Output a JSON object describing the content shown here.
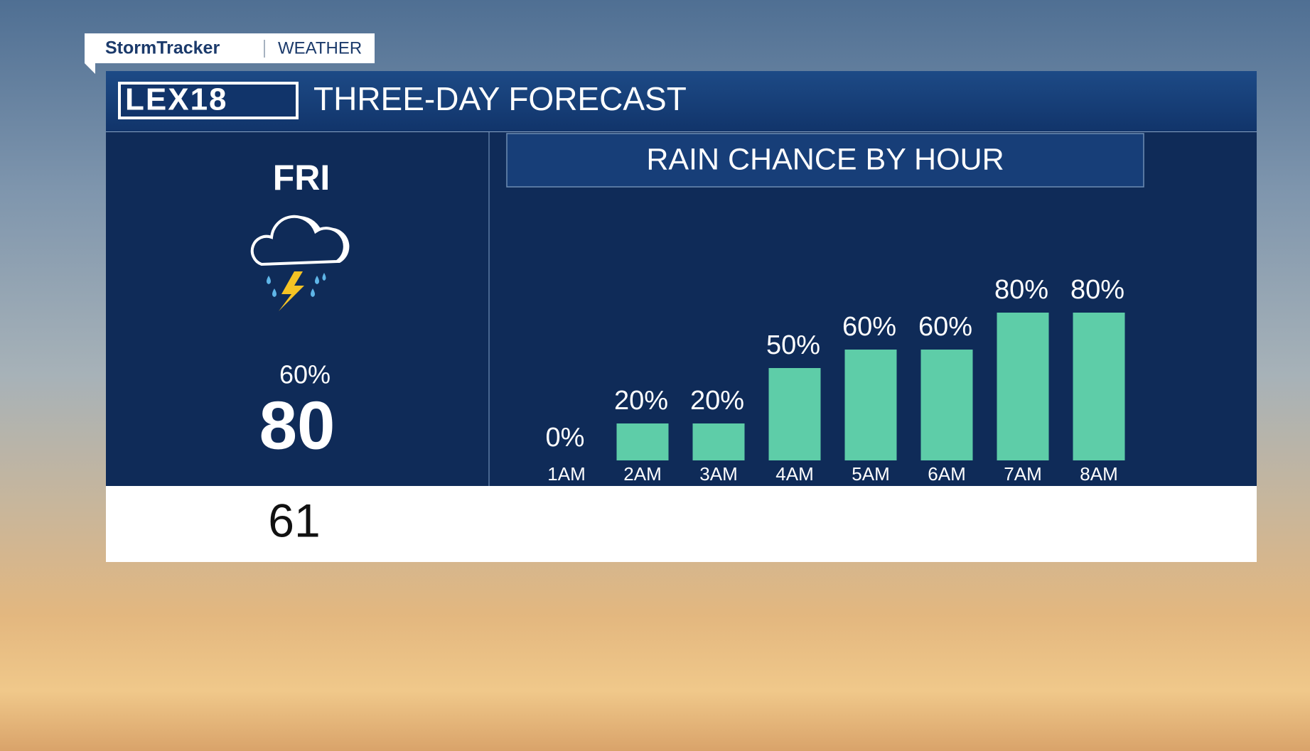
{
  "brand": {
    "name": "StormTracker",
    "section": "WEATHER"
  },
  "header": {
    "station": "LEX18",
    "title": "THREE-DAY FORECAST"
  },
  "day": {
    "name": "FRI",
    "precip": "60%",
    "high": "80",
    "low": "61"
  },
  "chart_data": {
    "type": "bar",
    "title": "RAIN CHANCE BY HOUR",
    "categories": [
      "1AM",
      "2AM",
      "3AM",
      "4AM",
      "5AM",
      "6AM",
      "7AM",
      "8AM"
    ],
    "values": [
      0,
      20,
      20,
      50,
      60,
      60,
      80,
      80
    ],
    "value_labels": [
      "0%",
      "20%",
      "20%",
      "50%",
      "60%",
      "60%",
      "80%",
      "80%"
    ],
    "color": "#5ecda8"
  }
}
